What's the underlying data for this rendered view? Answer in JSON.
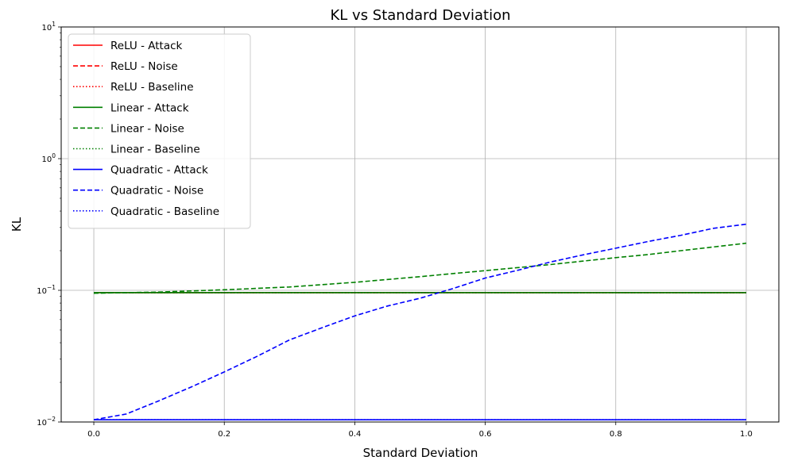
{
  "chart_data": {
    "type": "line",
    "title": "KL vs Standard Deviation",
    "xlabel": "Standard Deviation",
    "ylabel": "KL",
    "xlim": [
      -0.05,
      1.05
    ],
    "ylim": [
      0.01,
      10
    ],
    "yscale": "log",
    "grid": true,
    "legend_position": "top-left",
    "x_ticks": [
      0.0,
      0.2,
      0.4,
      0.6,
      0.8,
      1.0
    ],
    "x_tick_labels": [
      "0.0",
      "0.2",
      "0.4",
      "0.6",
      "0.8",
      "1.0"
    ],
    "y_ticks": [
      0.01,
      0.1,
      1,
      10
    ],
    "y_tick_labels": [
      {
        "base": "10",
        "exp": "−2"
      },
      {
        "base": "10",
        "exp": "−1"
      },
      {
        "base": "10",
        "exp": "0"
      },
      {
        "base": "10",
        "exp": "1"
      }
    ],
    "series": [
      {
        "name": "ReLU - Attack",
        "color": "#ff0000",
        "style": "solid",
        "x": [
          0.0,
          1.0
        ],
        "y": [
          0.096,
          0.096
        ]
      },
      {
        "name": "ReLU - Noise",
        "color": "#ff0000",
        "style": "dashed",
        "x": [
          0.0,
          1.0
        ],
        "y": [
          0.096,
          0.096
        ]
      },
      {
        "name": "ReLU - Baseline",
        "color": "#ff0000",
        "style": "dotted",
        "x": [
          0.0,
          1.0
        ],
        "y": [
          0.096,
          0.096
        ]
      },
      {
        "name": "Linear - Attack",
        "color": "#008000",
        "style": "solid",
        "x": [
          0.0,
          1.0
        ],
        "y": [
          0.096,
          0.096
        ]
      },
      {
        "name": "Linear - Noise",
        "color": "#008000",
        "style": "dashed",
        "x": [
          0.0,
          0.1,
          0.2,
          0.3,
          0.4,
          0.5,
          0.55,
          0.6,
          0.7,
          0.8,
          0.85,
          0.9,
          1.0
        ],
        "y": [
          0.095,
          0.097,
          0.101,
          0.106,
          0.115,
          0.127,
          0.134,
          0.141,
          0.157,
          0.177,
          0.187,
          0.2,
          0.228
        ]
      },
      {
        "name": "Linear - Baseline",
        "color": "#008000",
        "style": "dotted",
        "x": [
          0.0,
          1.0
        ],
        "y": [
          0.096,
          0.096
        ]
      },
      {
        "name": "Quadratic - Attack",
        "color": "#0000ff",
        "style": "solid",
        "x": [
          0.0,
          1.0
        ],
        "y": [
          0.0104,
          0.0104
        ]
      },
      {
        "name": "Quadratic - Noise",
        "color": "#0000ff",
        "style": "dashed",
        "x": [
          0.0,
          0.05,
          0.1,
          0.15,
          0.2,
          0.25,
          0.3,
          0.35,
          0.4,
          0.45,
          0.5,
          0.55,
          0.6,
          0.65,
          0.7,
          0.75,
          0.8,
          0.85,
          0.9,
          0.95,
          1.0
        ],
        "y": [
          0.0104,
          0.0115,
          0.0145,
          0.0185,
          0.024,
          0.0315,
          0.042,
          0.052,
          0.064,
          0.076,
          0.087,
          0.103,
          0.124,
          0.142,
          0.164,
          0.186,
          0.209,
          0.235,
          0.262,
          0.296,
          0.318
        ]
      },
      {
        "name": "Quadratic - Baseline",
        "color": "#0000ff",
        "style": "dotted",
        "x": [
          0.0,
          1.0
        ],
        "y": [
          0.0104,
          0.0104
        ]
      }
    ]
  }
}
